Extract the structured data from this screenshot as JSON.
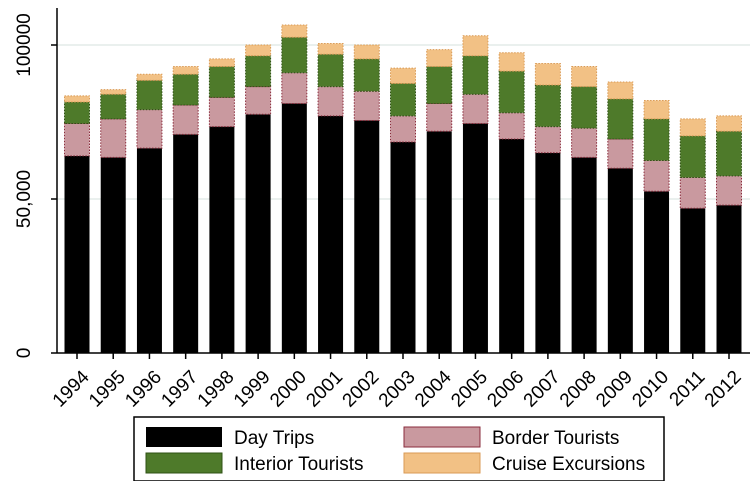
{
  "chart_data": {
    "type": "bar",
    "stacked": true,
    "categories": [
      "1994",
      "1995",
      "1996",
      "1997",
      "1998",
      "1999",
      "2000",
      "2001",
      "2002",
      "2003",
      "2004",
      "2005",
      "2006",
      "2007",
      "2008",
      "2009",
      "2010",
      "2011",
      "2012"
    ],
    "series": [
      {
        "name": "Day Trips",
        "color": "#000000",
        "values": [
          64000,
          63500,
          66500,
          71000,
          73500,
          77500,
          81000,
          77000,
          75500,
          68500,
          72000,
          74500,
          69500,
          65000,
          63500,
          60000,
          52500,
          47000,
          48000
        ]
      },
      {
        "name": "Border Tourists",
        "color": "#c9999f",
        "values": [
          10500,
          12500,
          12500,
          9500,
          9500,
          9000,
          10000,
          9500,
          9500,
          8500,
          9000,
          9500,
          8500,
          8500,
          9500,
          9500,
          10000,
          10000,
          9500
        ]
      },
      {
        "name": "Interior Tourists",
        "color": "#4e7a2a",
        "values": [
          7000,
          8000,
          9500,
          10000,
          10000,
          10000,
          11500,
          10500,
          10500,
          10500,
          12000,
          12500,
          13500,
          13500,
          13500,
          13000,
          13500,
          13500,
          14500
        ]
      },
      {
        "name": "Cruise Excursions",
        "color": "#f2c185",
        "values": [
          2000,
          1500,
          2000,
          2500,
          2500,
          3500,
          4000,
          3500,
          4500,
          5000,
          5500,
          6500,
          6000,
          7000,
          6500,
          5500,
          6000,
          5500,
          5000
        ]
      }
    ],
    "xlabel": "",
    "ylabel": "",
    "ylim": [
      0,
      110000
    ],
    "yticks": [
      {
        "value": 0,
        "label": "0"
      },
      {
        "value": 50000,
        "label": "50,000"
      },
      {
        "value": 100000,
        "label": "100000"
      }
    ],
    "grid": true,
    "legend_position": "bottom",
    "legend": [
      "Day Trips",
      "Border Tourists",
      "Interior Tourists",
      "Cruise Excursions"
    ]
  }
}
